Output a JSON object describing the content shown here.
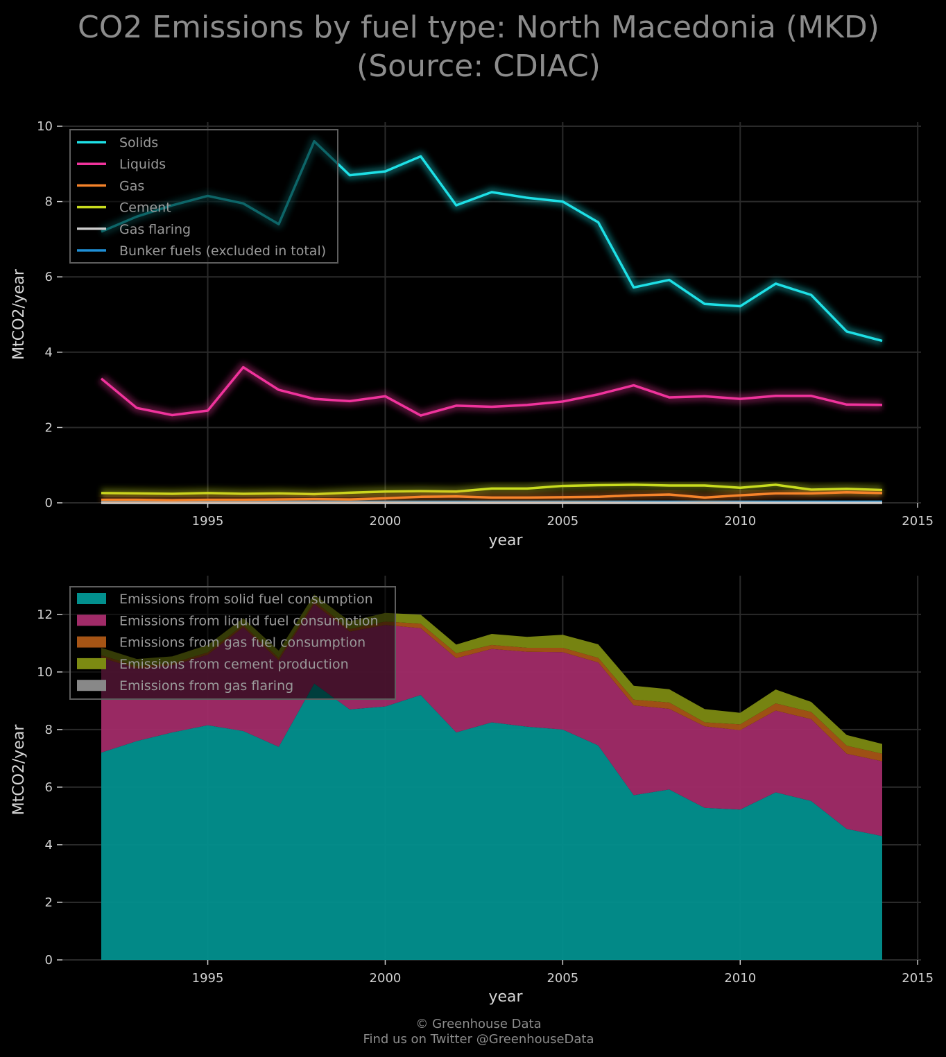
{
  "title_line1": "CO2 Emissions by fuel type: North Macedonia (MKD)",
  "title_line2": "(Source: CDIAC)",
  "footer_line1": "© Greenhouse Data",
  "footer_line2": "Find us on Twitter @GreenhouseData",
  "colors": {
    "solids": "#1ee0e6",
    "liquids": "#f0339c",
    "gas": "#f5832a",
    "cement": "#c8dc1e",
    "flaring": "#cccccc",
    "bunker": "#1f8fd6",
    "solids_area": "#02908e",
    "liquids_area": "#a12b68",
    "gas_area": "#a65415",
    "cement_area": "#7c8a12",
    "flaring_area": "#888888"
  },
  "chart_data": [
    {
      "type": "line",
      "xlabel": "year",
      "ylabel": "MtCO2/year",
      "xlim": [
        1992,
        2015
      ],
      "ylim": [
        0,
        10
      ],
      "xticks": [
        1995,
        2000,
        2005,
        2010,
        2015
      ],
      "yticks": [
        0,
        2,
        4,
        6,
        8,
        10
      ],
      "grid": true,
      "legend_position": "top-left",
      "x": [
        1992,
        1993,
        1994,
        1995,
        1996,
        1997,
        1998,
        1999,
        2000,
        2001,
        2002,
        2003,
        2004,
        2005,
        2006,
        2007,
        2008,
        2009,
        2010,
        2011,
        2012,
        2013,
        2014
      ],
      "series": [
        {
          "key": "solids",
          "name": "Solids",
          "values": [
            7.2,
            7.6,
            7.9,
            8.15,
            7.95,
            7.4,
            9.6,
            8.7,
            8.8,
            9.2,
            7.9,
            8.25,
            8.1,
            8.0,
            7.45,
            5.72,
            5.92,
            5.28,
            5.22,
            5.82,
            5.52,
            4.55,
            4.3
          ]
        },
        {
          "key": "liquids",
          "name": "Liquids",
          "values": [
            3.3,
            2.52,
            2.33,
            2.45,
            3.6,
            3.0,
            2.76,
            2.7,
            2.83,
            2.32,
            2.58,
            2.55,
            2.6,
            2.69,
            2.88,
            3.12,
            2.8,
            2.83,
            2.76,
            2.84,
            2.84,
            2.61,
            2.6
          ]
        },
        {
          "key": "gas",
          "name": "Gas",
          "values": [
            0.08,
            0.08,
            0.07,
            0.08,
            0.08,
            0.09,
            0.1,
            0.09,
            0.12,
            0.16,
            0.17,
            0.14,
            0.14,
            0.15,
            0.16,
            0.2,
            0.22,
            0.14,
            0.2,
            0.25,
            0.25,
            0.28,
            0.26
          ]
        },
        {
          "key": "cement",
          "name": "Cement",
          "values": [
            0.26,
            0.25,
            0.24,
            0.26,
            0.24,
            0.25,
            0.23,
            0.27,
            0.3,
            0.31,
            0.3,
            0.38,
            0.38,
            0.45,
            0.47,
            0.48,
            0.46,
            0.46,
            0.4,
            0.48,
            0.35,
            0.37,
            0.34
          ]
        },
        {
          "key": "flaring",
          "name": "Gas flaring",
          "values": [
            0,
            0,
            0,
            0,
            0,
            0,
            0,
            0,
            0,
            0,
            0,
            0,
            0,
            0,
            0,
            0,
            0,
            0,
            0,
            0,
            0,
            0,
            0
          ]
        },
        {
          "key": "bunker",
          "name": "Bunker fuels (excluded in total)",
          "values": [
            0.03,
            0.03,
            0.03,
            0.03,
            0.03,
            0.03,
            0.03,
            0.03,
            0.03,
            0.03,
            0.03,
            0.03,
            0.03,
            0.03,
            0.03,
            0.03,
            0.03,
            0.03,
            0.03,
            0.03,
            0.03,
            0.03,
            0.03
          ]
        }
      ]
    },
    {
      "type": "area",
      "stacked": true,
      "xlabel": "year",
      "ylabel": "MtCO2/year",
      "xlim": [
        1992,
        2015
      ],
      "ylim": [
        0,
        13.2
      ],
      "xticks": [
        1995,
        2000,
        2005,
        2010,
        2015
      ],
      "yticks": [
        0,
        2,
        4,
        6,
        8,
        10,
        12
      ],
      "grid": true,
      "legend_position": "top-left",
      "x": [
        1992,
        1993,
        1994,
        1995,
        1996,
        1997,
        1998,
        1999,
        2000,
        2001,
        2002,
        2003,
        2004,
        2005,
        2006,
        2007,
        2008,
        2009,
        2010,
        2011,
        2012,
        2013,
        2014
      ],
      "series": [
        {
          "key": "solids_area",
          "name": "Emissions from solid fuel consumption",
          "values": [
            7.2,
            7.6,
            7.9,
            8.15,
            7.95,
            7.4,
            9.6,
            8.7,
            8.8,
            9.2,
            7.9,
            8.25,
            8.1,
            8.0,
            7.45,
            5.72,
            5.92,
            5.28,
            5.22,
            5.82,
            5.52,
            4.55,
            4.3
          ]
        },
        {
          "key": "liquids_area",
          "name": "Emissions from liquid fuel consumption",
          "values": [
            3.3,
            2.52,
            2.33,
            2.45,
            3.6,
            3.0,
            2.76,
            2.7,
            2.83,
            2.32,
            2.58,
            2.55,
            2.6,
            2.69,
            2.88,
            3.12,
            2.8,
            2.83,
            2.76,
            2.84,
            2.84,
            2.61,
            2.6
          ]
        },
        {
          "key": "gas_area",
          "name": "Emissions from gas fuel consumption",
          "values": [
            0.08,
            0.08,
            0.07,
            0.08,
            0.08,
            0.09,
            0.1,
            0.09,
            0.12,
            0.16,
            0.17,
            0.14,
            0.14,
            0.15,
            0.16,
            0.2,
            0.22,
            0.14,
            0.2,
            0.25,
            0.25,
            0.28,
            0.26
          ]
        },
        {
          "key": "cement_area",
          "name": "Emissions from cement production",
          "values": [
            0.26,
            0.25,
            0.24,
            0.26,
            0.24,
            0.25,
            0.23,
            0.27,
            0.3,
            0.31,
            0.3,
            0.38,
            0.38,
            0.45,
            0.47,
            0.48,
            0.46,
            0.46,
            0.4,
            0.48,
            0.35,
            0.37,
            0.34
          ]
        },
        {
          "key": "flaring_area",
          "name": "Emissions from gas flaring",
          "values": [
            0,
            0,
            0,
            0,
            0,
            0,
            0,
            0,
            0,
            0,
            0,
            0,
            0,
            0,
            0,
            0,
            0,
            0,
            0,
            0,
            0,
            0,
            0
          ]
        }
      ]
    }
  ]
}
